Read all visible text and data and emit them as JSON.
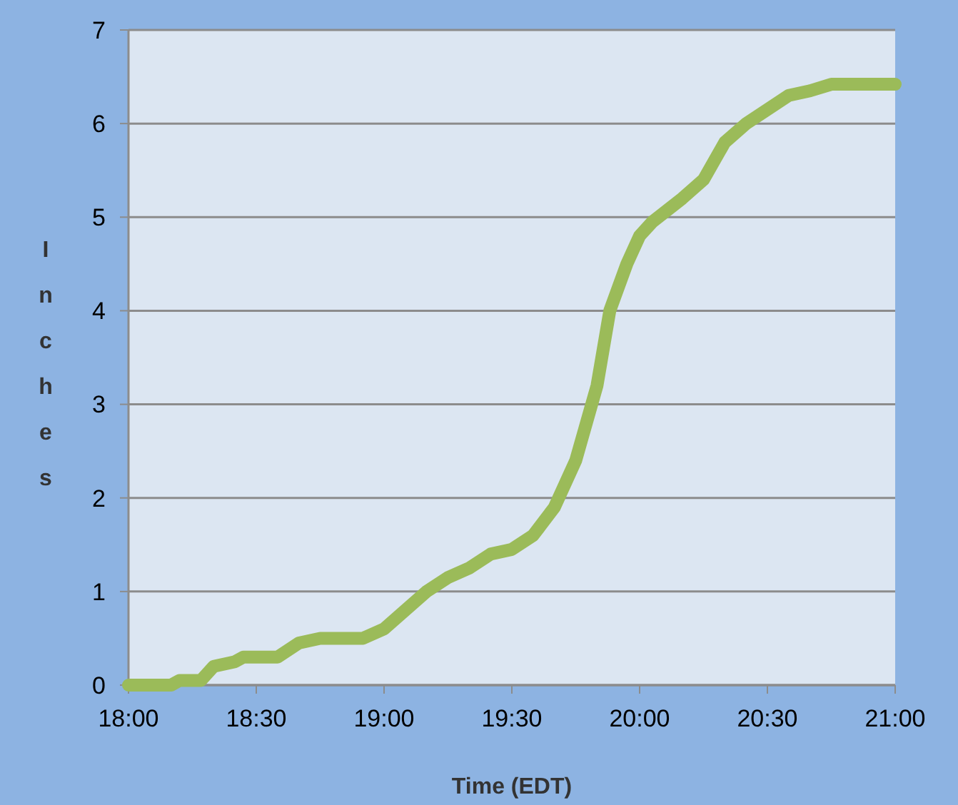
{
  "chart_data": {
    "type": "line",
    "xlabel": "Time (EDT)",
    "ylabel": "Inches",
    "x": [
      18,
      18.1667,
      18.2,
      18.2833,
      18.3333,
      18.4167,
      18.45,
      18.5833,
      18.6667,
      18.75,
      18.9167,
      19,
      19.0833,
      19.1667,
      19.25,
      19.3333,
      19.4167,
      19.5,
      19.5833,
      19.6667,
      19.75,
      19.8333,
      19.8833,
      19.95,
      20,
      20.05,
      20.1667,
      20.25,
      20.3333,
      20.4167,
      20.5,
      20.5833,
      20.6667,
      20.75,
      21
    ],
    "series": [
      {
        "color": "#9bbb59",
        "values": [
          0,
          0,
          0.05,
          0.05,
          0.2,
          0.25,
          0.3,
          0.3,
          0.45,
          0.5,
          0.5,
          0.6,
          0.8,
          1.0,
          1.15,
          1.25,
          1.4,
          1.45,
          1.6,
          1.9,
          2.4,
          3.2,
          4.0,
          4.5,
          4.8,
          4.95,
          5.2,
          5.4,
          5.8,
          6.0,
          6.15,
          6.3,
          6.35,
          6.42,
          6.42
        ]
      }
    ],
    "xlim": [
      18,
      21
    ],
    "xticks": [
      {
        "value": 18,
        "label": "18:00"
      },
      {
        "value": 18.5,
        "label": "18:30"
      },
      {
        "value": 19,
        "label": "19:00"
      },
      {
        "value": 19.5,
        "label": "19:30"
      },
      {
        "value": 20,
        "label": "20:00"
      },
      {
        "value": 20.5,
        "label": "20:30"
      },
      {
        "value": 21,
        "label": "21:00"
      }
    ],
    "ylim": [
      0,
      7
    ],
    "yticks": [
      0,
      1,
      2,
      3,
      4,
      5,
      6,
      7
    ],
    "grid": "y",
    "line_style": "solid"
  }
}
